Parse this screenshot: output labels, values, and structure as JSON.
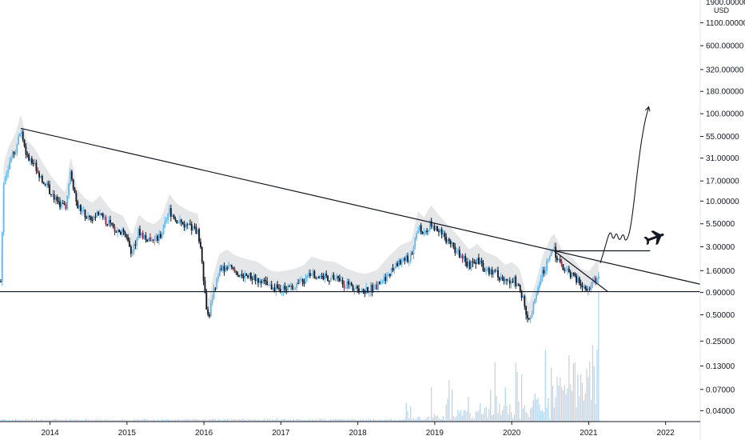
{
  "chart_data": {
    "type": "candlestick",
    "price_scale": "log",
    "currency": "USD",
    "top_label": "1900.00000",
    "ylim": [
      0.03,
      2000
    ],
    "y_ticks": [
      {
        "label": "1100.00000",
        "value": 1100
      },
      {
        "label": "600.00000",
        "value": 600
      },
      {
        "label": "320.00000",
        "value": 320
      },
      {
        "label": "180.00000",
        "value": 180
      },
      {
        "label": "100.00000",
        "value": 100
      },
      {
        "label": "55.00000",
        "value": 55
      },
      {
        "label": "31.00000",
        "value": 31
      },
      {
        "label": "17.00000",
        "value": 17
      },
      {
        "label": "10.00000",
        "value": 10
      },
      {
        "label": "5.50000",
        "value": 5.5
      },
      {
        "label": "3.00000",
        "value": 3
      },
      {
        "label": "1.60000",
        "value": 1.6
      },
      {
        "label": "0.90000",
        "value": 0.9
      },
      {
        "label": "0.50000",
        "value": 0.5
      },
      {
        "label": "0.25000",
        "value": 0.25
      },
      {
        "label": "0.13000",
        "value": 0.13
      },
      {
        "label": "0.07000",
        "value": 0.07
      },
      {
        "label": "0.04000",
        "value": 0.04
      }
    ],
    "x_ticks": [
      "2014",
      "2015",
      "2016",
      "2017",
      "2018",
      "2019",
      "2020",
      "2021",
      "2022"
    ],
    "xlim": [
      2013.35,
      2022.45
    ],
    "price_path": [
      [
        2013.36,
        1.2
      ],
      [
        2013.4,
        18
      ],
      [
        2013.47,
        28
      ],
      [
        2013.55,
        38
      ],
      [
        2013.62,
        65
      ],
      [
        2013.7,
        32
      ],
      [
        2013.8,
        26
      ],
      [
        2013.9,
        18
      ],
      [
        2014.0,
        13
      ],
      [
        2014.1,
        10
      ],
      [
        2014.2,
        8
      ],
      [
        2014.27,
        22
      ],
      [
        2014.35,
        9
      ],
      [
        2014.45,
        7
      ],
      [
        2014.55,
        6.2
      ],
      [
        2014.65,
        7.5
      ],
      [
        2014.8,
        5
      ],
      [
        2014.95,
        4.4
      ],
      [
        2015.0,
        3.5
      ],
      [
        2015.07,
        2.6
      ],
      [
        2015.15,
        4.5
      ],
      [
        2015.25,
        3.8
      ],
      [
        2015.35,
        3.5
      ],
      [
        2015.45,
        4.2
      ],
      [
        2015.55,
        7.8
      ],
      [
        2015.65,
        6
      ],
      [
        2015.8,
        5
      ],
      [
        2015.92,
        4.6
      ],
      [
        2015.97,
        2.5
      ],
      [
        2016.02,
        0.75
      ],
      [
        2016.06,
        0.45
      ],
      [
        2016.12,
        0.9
      ],
      [
        2016.2,
        1.6
      ],
      [
        2016.3,
        1.8
      ],
      [
        2016.4,
        1.55
      ],
      [
        2016.55,
        1.4
      ],
      [
        2016.7,
        1.3
      ],
      [
        2016.85,
        1.05
      ],
      [
        2016.95,
        1.0
      ],
      [
        2017.1,
        1.05
      ],
      [
        2017.2,
        1.1
      ],
      [
        2017.3,
        1.2
      ],
      [
        2017.4,
        1.5
      ],
      [
        2017.55,
        1.35
      ],
      [
        2017.7,
        1.3
      ],
      [
        2017.85,
        1.1
      ],
      [
        2018.0,
        0.98
      ],
      [
        2018.1,
        0.95
      ],
      [
        2018.25,
        1.05
      ],
      [
        2018.4,
        1.5
      ],
      [
        2018.55,
        2.0
      ],
      [
        2018.7,
        2.3
      ],
      [
        2018.78,
        5
      ],
      [
        2018.86,
        4.2
      ],
      [
        2018.95,
        5.8
      ],
      [
        2019.05,
        4.5
      ],
      [
        2019.15,
        3.6
      ],
      [
        2019.3,
        2.6
      ],
      [
        2019.45,
        1.8
      ],
      [
        2019.55,
        2.1
      ],
      [
        2019.65,
        1.7
      ],
      [
        2019.8,
        1.5
      ],
      [
        2019.92,
        1.2
      ],
      [
        2020.0,
        1.3
      ],
      [
        2020.1,
        1.1
      ],
      [
        2020.17,
        0.65
      ],
      [
        2020.22,
        0.42
      ],
      [
        2020.3,
        0.7
      ],
      [
        2020.4,
        1.5
      ],
      [
        2020.5,
        2.4
      ],
      [
        2020.55,
        2.75
      ],
      [
        2020.65,
        1.8
      ],
      [
        2020.8,
        1.4
      ],
      [
        2020.9,
        1.1
      ],
      [
        2021.0,
        1.0
      ],
      [
        2021.08,
        1.25
      ],
      [
        2021.14,
        1.45
      ]
    ],
    "volume_peak_year": 2021.15
  },
  "drawings": {
    "descending_trendline": {
      "from": [
        2013.62,
        68
      ],
      "to": [
        2022.45,
        1.12
      ]
    },
    "horizontal_support": {
      "from": [
        2013.35,
        0.92
      ],
      "to": [
        2022.45,
        0.92
      ],
      "value": 0.92
    },
    "resistance_box_line": {
      "from": [
        2020.55,
        2.7
      ],
      "to": [
        2021.8,
        2.7
      ],
      "value": 2.7
    },
    "short_trendline": {
      "from": [
        2020.55,
        2.7
      ],
      "to": [
        2021.25,
        0.92
      ]
    },
    "projection_path": [
      [
        2021.15,
        1.95
      ],
      [
        2021.2,
        2.7
      ],
      [
        2021.28,
        4.8
      ],
      [
        2021.32,
        3.5
      ],
      [
        2021.36,
        4.5
      ],
      [
        2021.4,
        3.4
      ],
      [
        2021.45,
        4.4
      ],
      [
        2021.48,
        3.3
      ],
      [
        2021.55,
        4.8
      ],
      [
        2021.65,
        30
      ],
      [
        2021.72,
        75
      ],
      [
        2021.78,
        120
      ]
    ],
    "airplane_icon": "airplane-icon",
    "airplane_anchor": [
      2021.85,
      3.8
    ]
  },
  "colors": {
    "up": "#5fb8f2",
    "down": "#131722",
    "accent": "#9c2240",
    "band": "#dcdde0",
    "volume_up": "#a9d6f5",
    "volume_down": "#cfcfd3",
    "drawing": "#131722",
    "axis_text": "#131722"
  }
}
